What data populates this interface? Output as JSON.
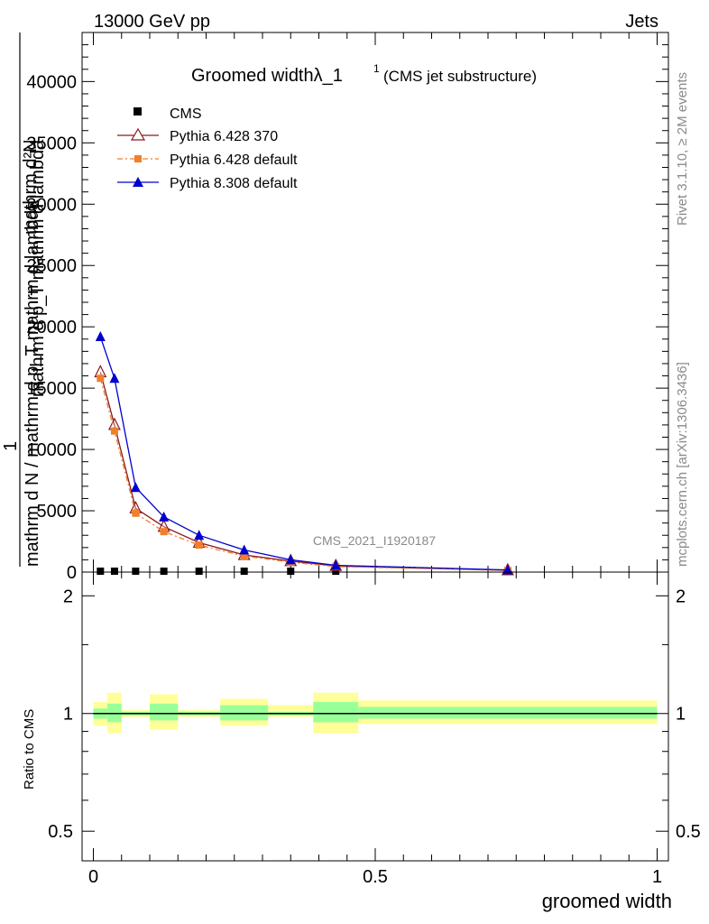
{
  "header": {
    "energy_label": "13000 GeV pp",
    "category_label": "Jets"
  },
  "side_labels": {
    "rivet": "Rivet 3.1.10, ≥ 2M events",
    "mcplots": "mcplots.cern.ch [arXiv:1306.3436]"
  },
  "colors": {
    "cms": "#000000",
    "pythia6_370": "#8b1a1a",
    "pythia6_default": "#f07f2c",
    "pythia8_default": "#0000cc",
    "band_outer": "#ffff99",
    "band_inner": "#99ff99"
  },
  "chart_data": [
    {
      "type": "line",
      "title": "Groomed widthλ_1",
      "title_superscript": "1",
      "subtitle": "(CMS jet substructure)",
      "ylabel": "1 / mathrm d N / mathrm d p_T mathrm d p_T mathrm d lambda ... mathrm d^2N",
      "ylabel_fragments": [
        "mathrm d²N",
        "mathrm d p_T mathrm d lambda",
        "mathrm d p_T mathrm d lambda",
        "1",
        "mathrm d N",
        "mathrm d N / mathrm d p_T mathrm d lambda"
      ],
      "xlim": [
        -0.02,
        1.02
      ],
      "ylim": [
        0,
        44000
      ],
      "yticks": [
        0,
        5000,
        10000,
        15000,
        20000,
        25000,
        30000,
        35000,
        40000
      ],
      "ytick_labels": [
        "0",
        "5000",
        "10000",
        "15000",
        "20000",
        "25000",
        "30000",
        "35000",
        "40000"
      ],
      "watermark": "CMS_2021_I1920187",
      "legend_position": "top-left",
      "series": [
        {
          "name": "CMS",
          "marker": "square",
          "x": [
            0.0125,
            0.0375,
            0.075,
            0.125,
            0.1875,
            0.2675,
            0.35,
            0.43,
            0.735
          ],
          "y": [
            0,
            0,
            0,
            0,
            0,
            0,
            0,
            0,
            0
          ]
        },
        {
          "name": "Pythia 6.428 370",
          "marker": "open-triangle",
          "x": [
            0.0125,
            0.0375,
            0.075,
            0.125,
            0.1875,
            0.2675,
            0.35,
            0.43,
            0.735
          ],
          "y": [
            16300,
            12000,
            5200,
            3700,
            2400,
            1400,
            900,
            500,
            150
          ]
        },
        {
          "name": "Pythia 6.428 default",
          "marker": "filled-square",
          "x": [
            0.0125,
            0.0375,
            0.075,
            0.125,
            0.1875,
            0.2675,
            0.35,
            0.43,
            0.735
          ],
          "y": [
            15800,
            11500,
            4800,
            3300,
            2200,
            1300,
            800,
            450,
            130
          ]
        },
        {
          "name": "Pythia 8.308 default",
          "marker": "filled-triangle",
          "x": [
            0.0125,
            0.0375,
            0.075,
            0.125,
            0.1875,
            0.2675,
            0.35,
            0.43,
            0.735
          ],
          "y": [
            19200,
            15800,
            6900,
            4500,
            3000,
            1800,
            1000,
            550,
            180
          ]
        }
      ]
    },
    {
      "type": "area",
      "ylabel": "Ratio to CMS",
      "xlabel": "groomed width",
      "xlim": [
        -0.02,
        1.02
      ],
      "ylim": [
        0.42,
        2.3
      ],
      "xticks": [
        0,
        0.5,
        1
      ],
      "xtick_labels": [
        "0",
        "0.5",
        "1"
      ],
      "yticks": [
        0.5,
        1,
        2
      ],
      "ytick_labels": [
        "0.5",
        "1",
        "2"
      ],
      "reference_line": 1,
      "bins": [
        {
          "lo": 0.0,
          "hi": 0.025,
          "outer": [
            0.93,
            1.07
          ],
          "inner": [
            0.97,
            1.03
          ]
        },
        {
          "lo": 0.025,
          "hi": 0.05,
          "outer": [
            0.89,
            1.13
          ],
          "inner": [
            0.95,
            1.06
          ]
        },
        {
          "lo": 0.05,
          "hi": 0.1,
          "outer": [
            0.98,
            1.02
          ],
          "inner": [
            0.99,
            1.01
          ]
        },
        {
          "lo": 0.1,
          "hi": 0.15,
          "outer": [
            0.91,
            1.12
          ],
          "inner": [
            0.96,
            1.06
          ]
        },
        {
          "lo": 0.15,
          "hi": 0.225,
          "outer": [
            0.98,
            1.02
          ],
          "inner": [
            0.99,
            1.01
          ]
        },
        {
          "lo": 0.225,
          "hi": 0.31,
          "outer": [
            0.93,
            1.09
          ],
          "inner": [
            0.96,
            1.05
          ]
        },
        {
          "lo": 0.31,
          "hi": 0.39,
          "outer": [
            0.98,
            1.05
          ],
          "inner": [
            0.99,
            1.01
          ]
        },
        {
          "lo": 0.39,
          "hi": 0.47,
          "outer": [
            0.89,
            1.13
          ],
          "inner": [
            0.95,
            1.07
          ]
        },
        {
          "lo": 0.47,
          "hi": 1.0,
          "outer": [
            0.94,
            1.08
          ],
          "inner": [
            0.97,
            1.04
          ]
        }
      ]
    }
  ]
}
